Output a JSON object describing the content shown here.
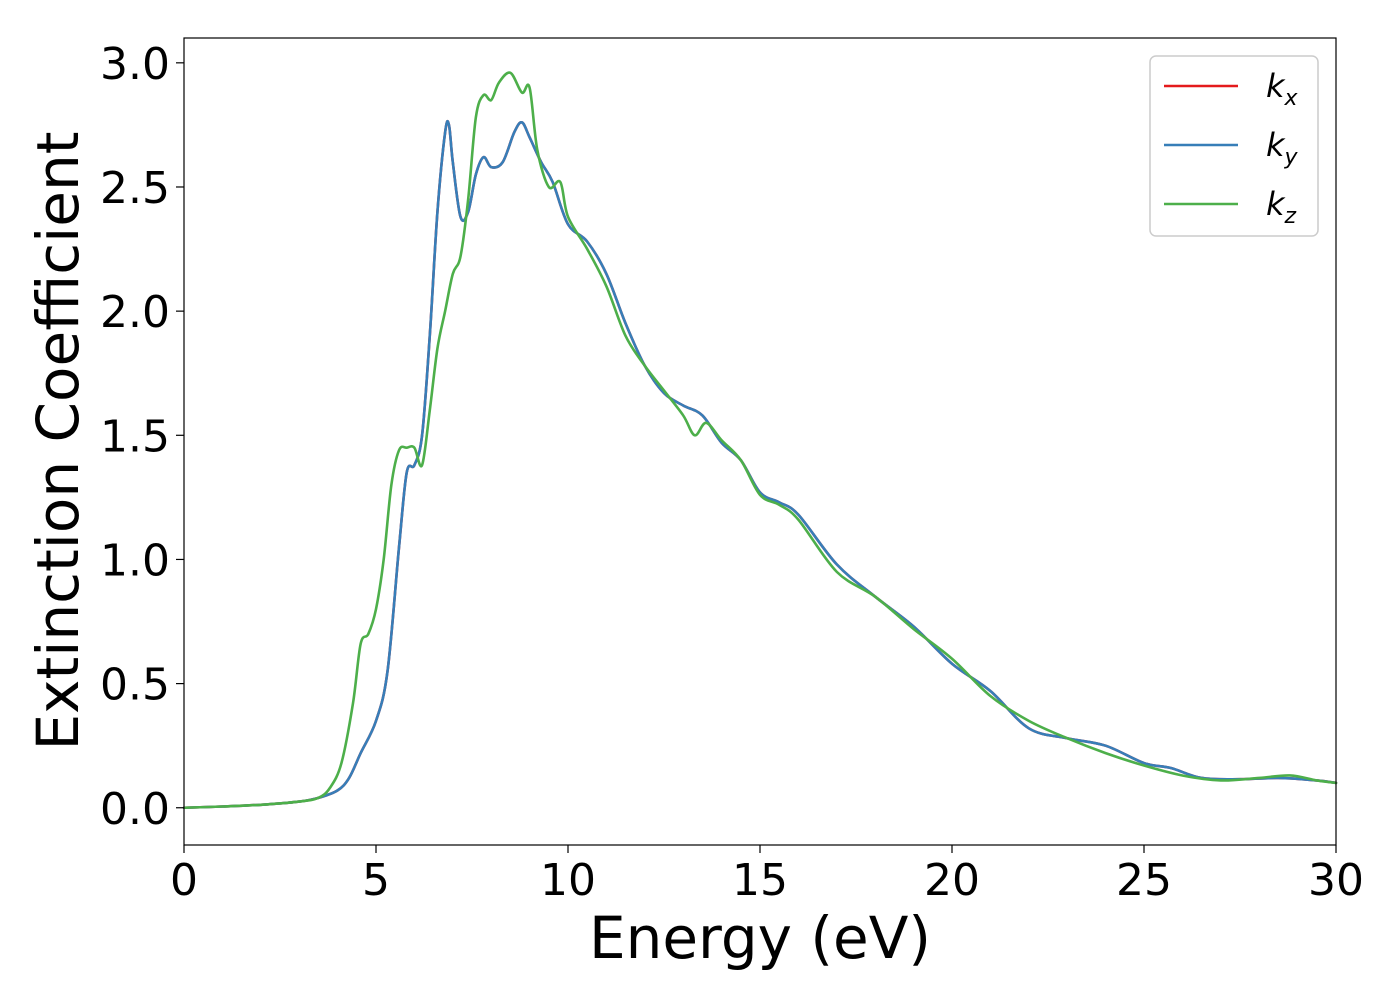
{
  "chart_data": {
    "type": "line",
    "xlabel": "Energy (eV)",
    "ylabel": "Extinction Coefficient",
    "xlim": [
      0,
      30
    ],
    "ylim": [
      -0.15,
      3.1
    ],
    "xticks": [
      "0",
      "5",
      "10",
      "15",
      "20",
      "25",
      "30"
    ],
    "yticks": [
      "0.0",
      "0.5",
      "1.0",
      "1.5",
      "2.0",
      "2.5",
      "3.0"
    ],
    "grid": false,
    "legend_position": "top-right",
    "series": [
      {
        "name_base": "k",
        "name_sub": "x",
        "color": "#e41a1c",
        "x": [
          0,
          1,
          2,
          3,
          3.5,
          4.0,
          4.3,
          4.6,
          5.0,
          5.3,
          5.6,
          5.8,
          6.0,
          6.2,
          6.4,
          6.6,
          6.8,
          6.9,
          7.0,
          7.2,
          7.4,
          7.6,
          7.8,
          8.0,
          8.3,
          8.6,
          8.8,
          9.0,
          9.3,
          9.6,
          10.0,
          10.5,
          11.0,
          11.5,
          12.0,
          12.5,
          13.0,
          13.5,
          14.0,
          14.5,
          15.0,
          15.5,
          16.0,
          17.0,
          18.0,
          19.0,
          20.0,
          21.0,
          22.0,
          23.0,
          24.0,
          25.0,
          25.7,
          26.5,
          27.5,
          28.5,
          29.5,
          30.0
        ],
        "values": [
          0.0,
          0.005,
          0.012,
          0.025,
          0.04,
          0.07,
          0.12,
          0.22,
          0.35,
          0.55,
          1.05,
          1.35,
          1.38,
          1.5,
          1.9,
          2.4,
          2.72,
          2.75,
          2.6,
          2.38,
          2.4,
          2.55,
          2.62,
          2.58,
          2.6,
          2.72,
          2.76,
          2.7,
          2.6,
          2.52,
          2.35,
          2.28,
          2.15,
          1.95,
          1.78,
          1.67,
          1.62,
          1.58,
          1.47,
          1.4,
          1.27,
          1.23,
          1.18,
          0.98,
          0.85,
          0.73,
          0.58,
          0.47,
          0.32,
          0.28,
          0.25,
          0.18,
          0.16,
          0.12,
          0.115,
          0.12,
          0.11,
          0.1
        ]
      },
      {
        "name_base": "k",
        "name_sub": "y",
        "color": "#377eb8",
        "x": [
          0,
          1,
          2,
          3,
          3.5,
          4.0,
          4.3,
          4.6,
          5.0,
          5.3,
          5.6,
          5.8,
          6.0,
          6.2,
          6.4,
          6.6,
          6.8,
          6.9,
          7.0,
          7.2,
          7.4,
          7.6,
          7.8,
          8.0,
          8.3,
          8.6,
          8.8,
          9.0,
          9.3,
          9.6,
          10.0,
          10.5,
          11.0,
          11.5,
          12.0,
          12.5,
          13.0,
          13.5,
          14.0,
          14.5,
          15.0,
          15.5,
          16.0,
          17.0,
          18.0,
          19.0,
          20.0,
          21.0,
          22.0,
          23.0,
          24.0,
          25.0,
          25.7,
          26.5,
          27.5,
          28.5,
          29.5,
          30.0
        ],
        "values": [
          0.0,
          0.005,
          0.012,
          0.025,
          0.04,
          0.07,
          0.12,
          0.22,
          0.35,
          0.55,
          1.05,
          1.35,
          1.38,
          1.5,
          1.9,
          2.4,
          2.72,
          2.75,
          2.6,
          2.38,
          2.4,
          2.55,
          2.62,
          2.58,
          2.6,
          2.72,
          2.76,
          2.7,
          2.6,
          2.52,
          2.35,
          2.28,
          2.15,
          1.95,
          1.78,
          1.67,
          1.62,
          1.58,
          1.47,
          1.4,
          1.27,
          1.23,
          1.18,
          0.98,
          0.85,
          0.73,
          0.58,
          0.47,
          0.32,
          0.28,
          0.25,
          0.18,
          0.16,
          0.12,
          0.115,
          0.12,
          0.11,
          0.1
        ]
      },
      {
        "name_base": "k",
        "name_sub": "z",
        "color": "#4daf4a",
        "x": [
          0,
          1,
          2,
          3,
          3.5,
          3.8,
          4.1,
          4.4,
          4.6,
          4.8,
          5.0,
          5.2,
          5.4,
          5.6,
          5.8,
          6.0,
          6.2,
          6.4,
          6.6,
          6.8,
          7.0,
          7.2,
          7.4,
          7.6,
          7.8,
          8.0,
          8.2,
          8.5,
          8.8,
          9.0,
          9.2,
          9.5,
          9.8,
          10.0,
          10.5,
          11.0,
          11.5,
          12.0,
          12.5,
          13.0,
          13.3,
          13.6,
          14.0,
          14.5,
          15.0,
          15.5,
          16.0,
          17.0,
          18.0,
          19.0,
          20.0,
          21.0,
          22.0,
          23.0,
          24.0,
          25.0,
          26.0,
          27.0,
          28.0,
          28.8,
          29.5,
          30.0
        ],
        "values": [
          0.0,
          0.005,
          0.012,
          0.025,
          0.04,
          0.08,
          0.18,
          0.42,
          0.66,
          0.7,
          0.8,
          1.0,
          1.3,
          1.44,
          1.45,
          1.45,
          1.38,
          1.6,
          1.85,
          2.0,
          2.15,
          2.22,
          2.45,
          2.78,
          2.87,
          2.85,
          2.92,
          2.96,
          2.88,
          2.9,
          2.65,
          2.5,
          2.52,
          2.38,
          2.25,
          2.1,
          1.9,
          1.78,
          1.68,
          1.58,
          1.5,
          1.55,
          1.48,
          1.4,
          1.26,
          1.22,
          1.16,
          0.95,
          0.85,
          0.72,
          0.6,
          0.45,
          0.35,
          0.28,
          0.22,
          0.17,
          0.13,
          0.11,
          0.12,
          0.13,
          0.11,
          0.1
        ]
      }
    ]
  }
}
